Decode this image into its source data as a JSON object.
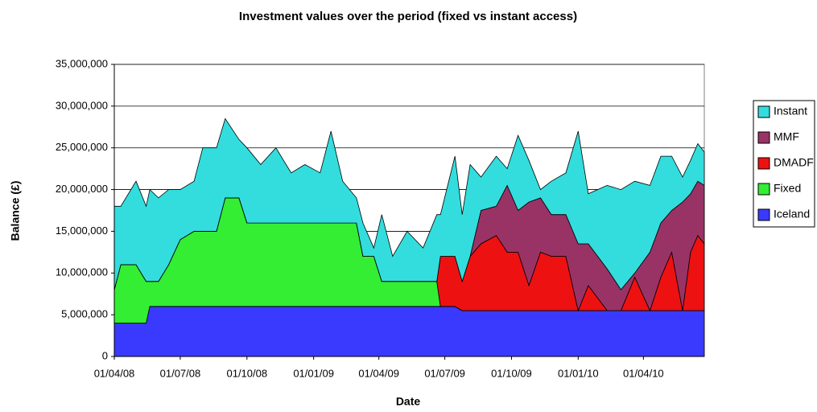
{
  "chart_data": {
    "type": "stacked-area",
    "title": "Investment values over the period (fixed vs instant access)",
    "x_label": "Date",
    "y_label": "Balance (£)",
    "x": [
      "2008-04-01",
      "2008-04-10",
      "2008-05-01",
      "2008-05-15",
      "2008-05-20",
      "2008-06-01",
      "2008-06-15",
      "2008-07-01",
      "2008-07-20",
      "2008-08-01",
      "2008-08-20",
      "2008-09-01",
      "2008-09-20",
      "2008-10-01",
      "2008-10-20",
      "2008-11-10",
      "2008-12-01",
      "2008-12-20",
      "2009-01-10",
      "2009-01-25",
      "2009-02-10",
      "2009-03-01",
      "2009-03-10",
      "2009-03-25",
      "2009-04-05",
      "2009-04-20",
      "2009-05-10",
      "2009-06-01",
      "2009-06-20",
      "2009-06-25",
      "2009-07-15",
      "2009-07-25",
      "2009-08-05",
      "2009-08-20",
      "2009-09-10",
      "2009-09-25",
      "2009-10-10",
      "2009-10-25",
      "2009-11-10",
      "2009-11-25",
      "2009-12-15",
      "2010-01-01",
      "2010-01-15",
      "2010-02-10",
      "2010-03-01",
      "2010-03-20",
      "2010-04-10",
      "2010-04-25",
      "2010-05-10",
      "2010-05-25",
      "2010-06-05",
      "2010-06-15",
      "2010-06-24"
    ],
    "series": [
      {
        "name": "Iceland",
        "color": "#3a3aff",
        "values": [
          4000000,
          4000000,
          4000000,
          4000000,
          6000000,
          6000000,
          6000000,
          6000000,
          6000000,
          6000000,
          6000000,
          6000000,
          6000000,
          6000000,
          6000000,
          6000000,
          6000000,
          6000000,
          6000000,
          6000000,
          6000000,
          6000000,
          6000000,
          6000000,
          6000000,
          6000000,
          6000000,
          6000000,
          6000000,
          6000000,
          6000000,
          5500000,
          5500000,
          5500000,
          5500000,
          5500000,
          5500000,
          5500000,
          5500000,
          5500000,
          5500000,
          5500000,
          5500000,
          5500000,
          5500000,
          5500000,
          5500000,
          5500000,
          5500000,
          5500000,
          5500000,
          5500000,
          5500000
        ]
      },
      {
        "name": "Fixed",
        "color": "#33ee33",
        "values": [
          4000000,
          7000000,
          7000000,
          5000000,
          3000000,
          3000000,
          5000000,
          8000000,
          9000000,
          9000000,
          9000000,
          13000000,
          13000000,
          10000000,
          10000000,
          10000000,
          10000000,
          10000000,
          10000000,
          10000000,
          10000000,
          10000000,
          6000000,
          6000000,
          3000000,
          3000000,
          3000000,
          3000000,
          3000000,
          0,
          0,
          0,
          0,
          0,
          0,
          0,
          0,
          0,
          0,
          0,
          0,
          0,
          0,
          0,
          0,
          0,
          0,
          0,
          0,
          0,
          0,
          0,
          0
        ]
      },
      {
        "name": "DMADF",
        "color": "#ee1111",
        "values": [
          0,
          0,
          0,
          0,
          0,
          0,
          0,
          0,
          0,
          0,
          0,
          0,
          0,
          0,
          0,
          0,
          0,
          0,
          0,
          0,
          0,
          0,
          0,
          0,
          0,
          0,
          0,
          0,
          0,
          6000000,
          6000000,
          3500000,
          6500000,
          8000000,
          9000000,
          7000000,
          7000000,
          3000000,
          7000000,
          6500000,
          6500000,
          0,
          3000000,
          0,
          0,
          4000000,
          0,
          4000000,
          7000000,
          0,
          7000000,
          9000000,
          8000000
        ]
      },
      {
        "name": "MMF",
        "color": "#993366",
        "values": [
          0,
          0,
          0,
          0,
          0,
          0,
          0,
          0,
          0,
          0,
          0,
          0,
          0,
          0,
          0,
          0,
          0,
          0,
          0,
          0,
          0,
          0,
          0,
          0,
          0,
          0,
          0,
          0,
          0,
          0,
          0,
          0,
          0,
          4000000,
          3500000,
          8000000,
          5000000,
          10000000,
          6500000,
          5000000,
          5000000,
          8000000,
          5000000,
          5000000,
          2500000,
          500000,
          7000000,
          6500000,
          5000000,
          13000000,
          7000000,
          6500000,
          7000000
        ]
      },
      {
        "name": "Instant",
        "color": "#33dddd",
        "values": [
          10000000,
          7000000,
          10000000,
          9000000,
          11000000,
          10000000,
          9000000,
          6000000,
          6000000,
          10000000,
          10000000,
          9500000,
          7000000,
          9000000,
          7000000,
          9000000,
          6000000,
          7000000,
          6000000,
          11000000,
          5000000,
          3000000,
          4000000,
          1000000,
          8000000,
          3000000,
          6000000,
          4000000,
          8000000,
          5000000,
          12000000,
          8000000,
          11000000,
          4000000,
          6000000,
          2000000,
          9000000,
          5000000,
          1000000,
          4000000,
          5000000,
          13500000,
          6000000,
          10000000,
          12000000,
          11000000,
          8000000,
          8000000,
          6500000,
          3000000,
          4000000,
          4500000,
          4000000
        ]
      }
    ],
    "xlim": [
      "2008-04-01",
      "2010-06-24"
    ],
    "xticks": [
      {
        "value": "2008-04-01",
        "label": "01/04/08"
      },
      {
        "value": "2008-07-01",
        "label": "01/07/08"
      },
      {
        "value": "2008-10-01",
        "label": "01/10/08"
      },
      {
        "value": "2009-01-01",
        "label": "01/01/09"
      },
      {
        "value": "2009-04-01",
        "label": "01/04/09"
      },
      {
        "value": "2009-07-01",
        "label": "01/07/09"
      },
      {
        "value": "2009-10-01",
        "label": "01/10/09"
      },
      {
        "value": "2010-01-01",
        "label": "01/01/10"
      },
      {
        "value": "2010-04-01",
        "label": "01/04/10"
      }
    ],
    "ylim": [
      0,
      35000000
    ],
    "yticks": [
      0,
      {
        "value": 5000000,
        "label": "5,000,000"
      },
      {
        "value": 10000000,
        "label": "10,000,000"
      },
      {
        "value": 15000000,
        "label": "15,000,000"
      },
      {
        "value": 20000000,
        "label": "20,000,000"
      },
      {
        "value": 25000000,
        "label": "25,000,000"
      },
      {
        "value": 30000000,
        "label": "30,000,000"
      },
      {
        "value": 35000000,
        "label": "35,000,000"
      }
    ],
    "grid": true,
    "legend": "right"
  }
}
